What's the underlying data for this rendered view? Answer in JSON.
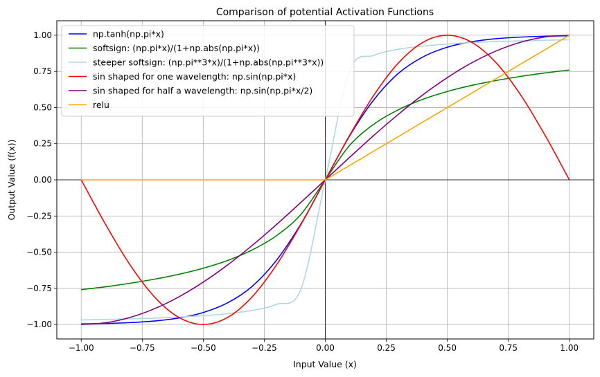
{
  "chart_data": {
    "type": "line",
    "title": "Comparison of potential Activation Functions",
    "xlabel": "Input Value (x)",
    "ylabel": "Output Value (f(x))",
    "xlim": [
      -1.1,
      1.1
    ],
    "ylim": [
      -1.1,
      1.1
    ],
    "x_ticks": [
      -1.0,
      -0.75,
      -0.5,
      -0.25,
      0.0,
      0.25,
      0.5,
      0.75,
      1.0
    ],
    "x_tick_labels": [
      "−1.00",
      "−0.75",
      "−0.50",
      "−0.25",
      "0.00",
      "0.25",
      "0.50",
      "0.75",
      "1.00"
    ],
    "y_ticks": [
      1.0,
      0.75,
      0.5,
      0.25,
      0.0,
      -0.25,
      -0.5,
      -0.75,
      -1.0
    ],
    "y_tick_labels": [
      "1.00",
      "0.75",
      "0.50",
      "0.25",
      "0.00",
      "−0.25",
      "−0.50",
      "−0.75",
      "−1.00"
    ],
    "grid": true,
    "legend_position": "top-left",
    "reference_lines": {
      "x": 0,
      "y": 0
    },
    "x": [
      -1.0,
      -0.9,
      -0.8,
      -0.7,
      -0.6,
      -0.5,
      -0.4,
      -0.3,
      -0.2,
      -0.1,
      0.0,
      0.1,
      0.2,
      0.3,
      0.4,
      0.5,
      0.6,
      0.7,
      0.8,
      0.9,
      1.0
    ],
    "series": [
      {
        "name": "np.tanh(np.pi*x)",
        "color": "#0000ff",
        "values": [
          -0.996,
          -0.993,
          -0.987,
          -0.976,
          -0.955,
          -0.917,
          -0.85,
          -0.737,
          -0.556,
          -0.305,
          0.0,
          0.305,
          0.556,
          0.737,
          0.85,
          0.917,
          0.955,
          0.976,
          0.987,
          0.993,
          0.996
        ]
      },
      {
        "name": "softsign: (np.pi*x)/(1+np.abs(np.pi*x))",
        "color": "#008000",
        "values": [
          -0.759,
          -0.739,
          -0.715,
          -0.687,
          -0.653,
          -0.611,
          -0.557,
          -0.485,
          -0.386,
          -0.239,
          0.0,
          0.239,
          0.386,
          0.485,
          0.557,
          0.611,
          0.653,
          0.687,
          0.715,
          0.739,
          0.759
        ]
      },
      {
        "name": "steeper softsign: (np.pi**3*x)/(1+np.abs(np.pi**3*x))",
        "color": "#add8e6",
        "values": [
          -0.969,
          -0.965,
          -0.961,
          -0.956,
          -0.949,
          -0.939,
          -0.925,
          -0.903,
          -0.861,
          -0.756,
          0.0,
          0.756,
          0.861,
          0.903,
          0.925,
          0.939,
          0.949,
          0.956,
          0.961,
          0.965,
          0.969
        ]
      },
      {
        "name": "sin shaped for one wavelength: np.sin(np.pi*x)",
        "color": "#ff0000",
        "values": [
          0.0,
          -0.309,
          -0.588,
          -0.809,
          -0.951,
          -1.0,
          -0.951,
          -0.809,
          -0.588,
          -0.309,
          0.0,
          0.309,
          0.588,
          0.809,
          0.951,
          1.0,
          0.951,
          0.809,
          0.588,
          0.309,
          0.0
        ]
      },
      {
        "name": "sin shaped for half a wavelength: np.sin(np.pi*x/2)",
        "color": "#800080",
        "values": [
          -1.0,
          -0.988,
          -0.951,
          -0.891,
          -0.809,
          -0.707,
          -0.588,
          -0.454,
          -0.309,
          -0.156,
          0.0,
          0.156,
          0.309,
          0.454,
          0.588,
          0.707,
          0.809,
          0.891,
          0.951,
          0.988,
          1.0
        ]
      },
      {
        "name": "relu",
        "color": "#ffa500",
        "values": [
          0.0,
          0.0,
          0.0,
          0.0,
          0.0,
          0.0,
          0.0,
          0.0,
          0.0,
          0.0,
          0.0,
          0.1,
          0.2,
          0.3,
          0.4,
          0.5,
          0.6,
          0.7,
          0.8,
          0.9,
          1.0
        ]
      }
    ]
  }
}
